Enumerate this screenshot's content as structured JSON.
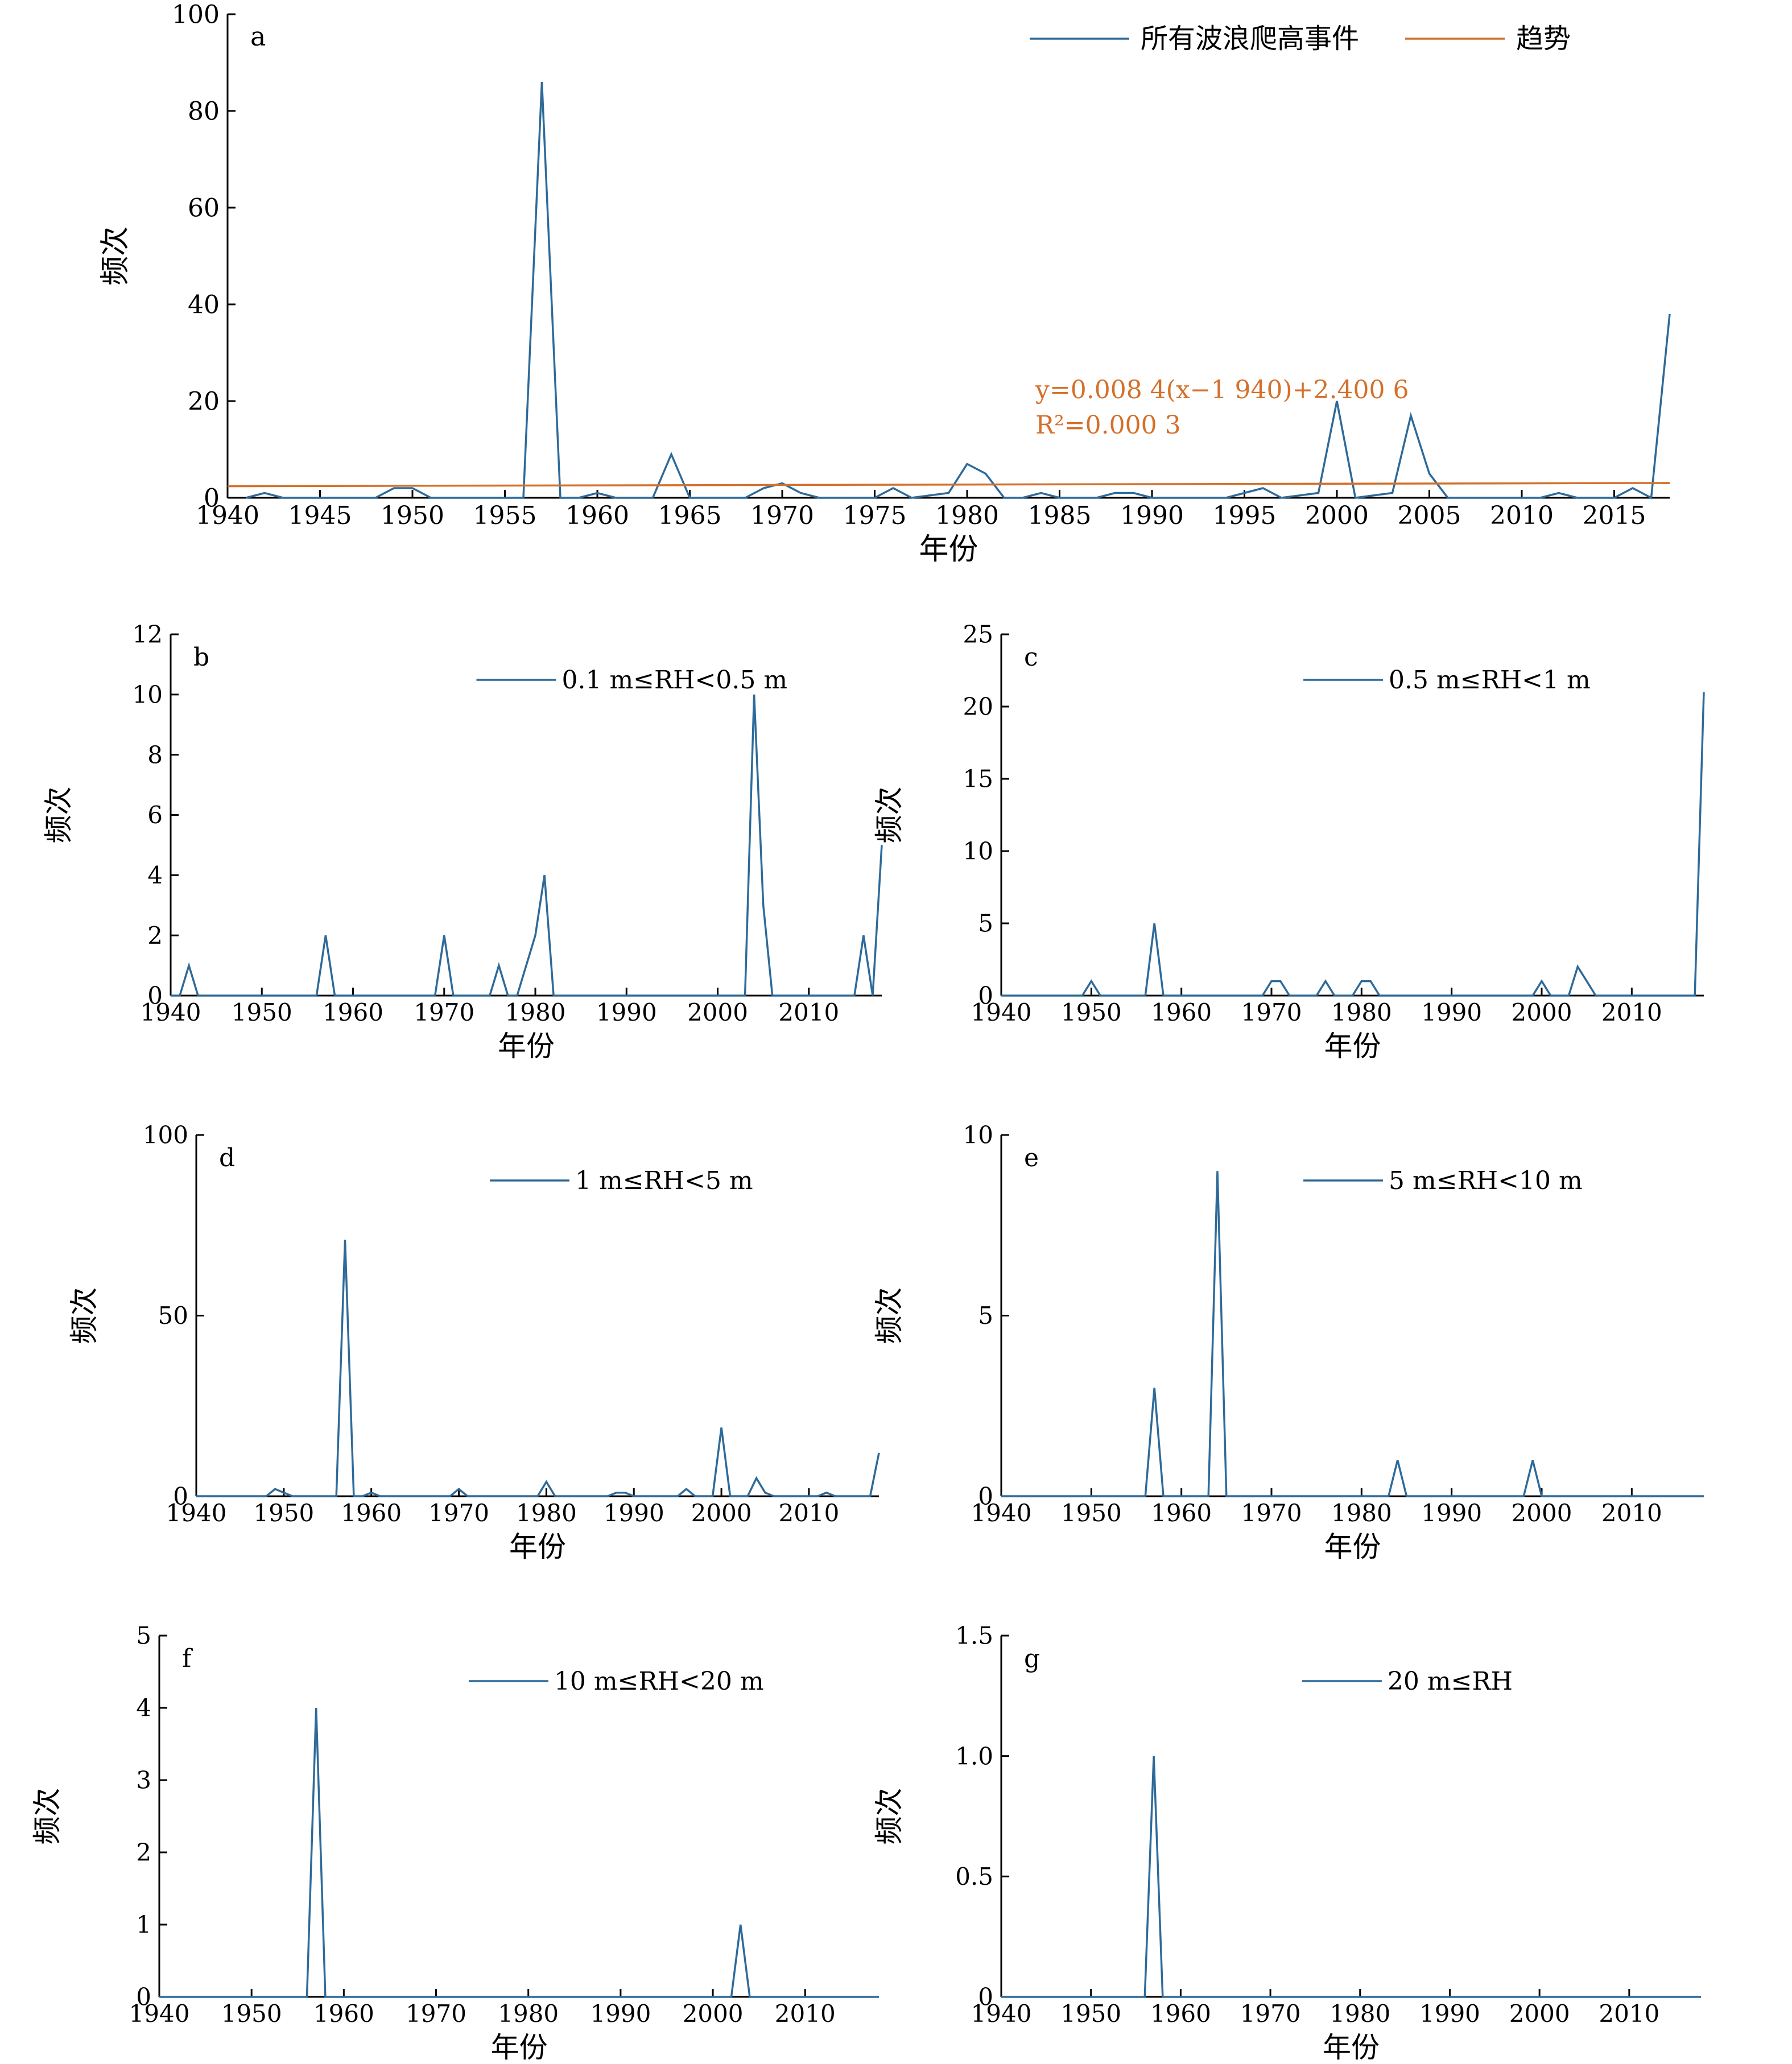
{
  "figure": {
    "xlabel": "年份",
    "ylabel": "频次",
    "line_color": "#2e6a99",
    "trend_color": "#d4702a",
    "text_color": "#000000"
  },
  "chart_data": [
    {
      "id": "a",
      "type": "line",
      "panel_label": "a",
      "xlabel": "年份",
      "ylabel": "频次",
      "xlim": [
        1940,
        2018
      ],
      "ylim": [
        0,
        100
      ],
      "xticks": [
        1940,
        1945,
        1950,
        1955,
        1960,
        1965,
        1970,
        1975,
        1980,
        1985,
        1990,
        1995,
        2000,
        2005,
        2010,
        2015
      ],
      "yticks": [
        0,
        20,
        40,
        60,
        80,
        100
      ],
      "legend": "top-right",
      "series": [
        {
          "name": "所有波浪爬高事件",
          "kind": "line",
          "color": "#2e6a99",
          "points": [
            [
              1941,
              0
            ],
            [
              1942,
              1
            ],
            [
              1943,
              0
            ],
            [
              1948,
              0
            ],
            [
              1949,
              2
            ],
            [
              1950,
              2
            ],
            [
              1951,
              0
            ],
            [
              1956,
              0
            ],
            [
              1957,
              86
            ],
            [
              1958,
              0
            ],
            [
              1959,
              0
            ],
            [
              1960,
              1
            ],
            [
              1961,
              0
            ],
            [
              1963,
              0
            ],
            [
              1964,
              9
            ],
            [
              1965,
              0
            ],
            [
              1968,
              0
            ],
            [
              1969,
              2
            ],
            [
              1970,
              3
            ],
            [
              1971,
              1
            ],
            [
              1972,
              0
            ],
            [
              1975,
              0
            ],
            [
              1976,
              2
            ],
            [
              1977,
              0
            ],
            [
              1979,
              1
            ],
            [
              1980,
              7
            ],
            [
              1981,
              5
            ],
            [
              1982,
              0
            ],
            [
              1983,
              0
            ],
            [
              1984,
              1
            ],
            [
              1985,
              0
            ],
            [
              1987,
              0
            ],
            [
              1988,
              1
            ],
            [
              1989,
              1
            ],
            [
              1990,
              0
            ],
            [
              1994,
              0
            ],
            [
              1995,
              1
            ],
            [
              1996,
              2
            ],
            [
              1997,
              0
            ],
            [
              1999,
              1
            ],
            [
              2000,
              20
            ],
            [
              2001,
              0
            ],
            [
              2003,
              1
            ],
            [
              2004,
              17
            ],
            [
              2005,
              5
            ],
            [
              2006,
              0
            ],
            [
              2011,
              0
            ],
            [
              2012,
              1
            ],
            [
              2013,
              0
            ],
            [
              2015,
              0
            ],
            [
              2016,
              2
            ],
            [
              2017,
              0
            ],
            [
              2018,
              38
            ]
          ]
        },
        {
          "name": "趋势",
          "kind": "trend",
          "color": "#d4702a",
          "points": [
            [
              1940,
              2.4006
            ],
            [
              2018,
              3.056
            ]
          ]
        }
      ],
      "annotation": {
        "equation_line1": "y=0.008 4(x−1 940)+2.400 6",
        "equation_line2": "R²=0.000 3",
        "color": "#d4702a"
      }
    },
    {
      "id": "b",
      "type": "line",
      "panel_label": "b",
      "xlabel": "年份",
      "ylabel": "频次",
      "xlim": [
        1940,
        2018
      ],
      "ylim": [
        0,
        12
      ],
      "xticks": [
        1940,
        1950,
        1960,
        1970,
        1980,
        1990,
        2000,
        2010
      ],
      "yticks": [
        0,
        2,
        4,
        6,
        8,
        10,
        12
      ],
      "legend": "top-right",
      "series": [
        {
          "name": "0.1 m≤RH<0.5 m",
          "kind": "line",
          "color": "#2e6a99",
          "points": [
            [
              1940,
              0
            ],
            [
              1941,
              0
            ],
            [
              1942,
              1
            ],
            [
              1943,
              0
            ],
            [
              1956,
              0
            ],
            [
              1957,
              2
            ],
            [
              1958,
              0
            ],
            [
              1969,
              0
            ],
            [
              1970,
              2
            ],
            [
              1971,
              0
            ],
            [
              1975,
              0
            ],
            [
              1976,
              1
            ],
            [
              1977,
              0
            ],
            [
              1978,
              0
            ],
            [
              1980,
              2
            ],
            [
              1981,
              4
            ],
            [
              1982,
              0
            ],
            [
              2003,
              0
            ],
            [
              2004,
              10
            ],
            [
              2005,
              3
            ],
            [
              2006,
              0
            ],
            [
              2015,
              0
            ],
            [
              2016,
              2
            ],
            [
              2017,
              0
            ],
            [
              2018,
              5
            ]
          ]
        }
      ]
    },
    {
      "id": "c",
      "type": "line",
      "panel_label": "c",
      "xlabel": "年份",
      "ylabel": "频次",
      "xlim": [
        1940,
        2018
      ],
      "ylim": [
        0,
        25
      ],
      "xticks": [
        1940,
        1950,
        1960,
        1970,
        1980,
        1990,
        2000,
        2010
      ],
      "yticks": [
        0,
        5,
        10,
        15,
        20,
        25
      ],
      "legend": "top-right",
      "series": [
        {
          "name": "0.5 m≤RH<1 m",
          "kind": "line",
          "color": "#2e6a99",
          "points": [
            [
              1940,
              0
            ],
            [
              1949,
              0
            ],
            [
              1950,
              1
            ],
            [
              1951,
              0
            ],
            [
              1956,
              0
            ],
            [
              1957,
              5
            ],
            [
              1958,
              0
            ],
            [
              1969,
              0
            ],
            [
              1970,
              1
            ],
            [
              1971,
              1
            ],
            [
              1972,
              0
            ],
            [
              1975,
              0
            ],
            [
              1976,
              1
            ],
            [
              1977,
              0
            ],
            [
              1979,
              0
            ],
            [
              1980,
              1
            ],
            [
              1981,
              1
            ],
            [
              1982,
              0
            ],
            [
              1999,
              0
            ],
            [
              2000,
              1
            ],
            [
              2001,
              0
            ],
            [
              2003,
              0
            ],
            [
              2004,
              2
            ],
            [
              2006,
              0
            ],
            [
              2017,
              0
            ],
            [
              2018,
              21
            ]
          ]
        }
      ]
    },
    {
      "id": "d",
      "type": "line",
      "panel_label": "d",
      "xlabel": "年份",
      "ylabel": "频次",
      "xlim": [
        1940,
        2018
      ],
      "ylim": [
        0,
        100
      ],
      "xticks": [
        1940,
        1950,
        1960,
        1970,
        1980,
        1990,
        2000,
        2010
      ],
      "yticks": [
        0,
        50,
        100
      ],
      "legend": "top-right",
      "series": [
        {
          "name": "1 m≤RH<5 m",
          "kind": "line",
          "color": "#2e6a99",
          "points": [
            [
              1940,
              0
            ],
            [
              1948,
              0
            ],
            [
              1949,
              2
            ],
            [
              1950,
              1
            ],
            [
              1951,
              0
            ],
            [
              1956,
              0
            ],
            [
              1957,
              71
            ],
            [
              1958,
              0
            ],
            [
              1959,
              0
            ],
            [
              1960,
              1
            ],
            [
              1961,
              0
            ],
            [
              1969,
              0
            ],
            [
              1970,
              2
            ],
            [
              1971,
              0
            ],
            [
              1979,
              0
            ],
            [
              1980,
              4
            ],
            [
              1981,
              0
            ],
            [
              1987,
              0
            ],
            [
              1988,
              1
            ],
            [
              1989,
              1
            ],
            [
              1990,
              0
            ],
            [
              1995,
              0
            ],
            [
              1996,
              2
            ],
            [
              1997,
              0
            ],
            [
              1999,
              0
            ],
            [
              2000,
              19
            ],
            [
              2001,
              0
            ],
            [
              2003,
              0
            ],
            [
              2004,
              5
            ],
            [
              2005,
              1
            ],
            [
              2006,
              0
            ],
            [
              2011,
              0
            ],
            [
              2012,
              1
            ],
            [
              2013,
              0
            ],
            [
              2017,
              0
            ],
            [
              2018,
              12
            ]
          ]
        }
      ]
    },
    {
      "id": "e",
      "type": "line",
      "panel_label": "e",
      "xlabel": "年份",
      "ylabel": "频次",
      "xlim": [
        1940,
        2018
      ],
      "ylim": [
        0,
        10
      ],
      "xticks": [
        1940,
        1950,
        1960,
        1970,
        1980,
        1990,
        2000,
        2010
      ],
      "yticks": [
        0,
        5,
        10
      ],
      "legend": "top-right",
      "series": [
        {
          "name": "5 m≤RH<10 m",
          "kind": "line",
          "color": "#2e6a99",
          "points": [
            [
              1940,
              0
            ],
            [
              1956,
              0
            ],
            [
              1957,
              3
            ],
            [
              1958,
              0
            ],
            [
              1963,
              0
            ],
            [
              1964,
              9
            ],
            [
              1965,
              0
            ],
            [
              1983,
              0
            ],
            [
              1984,
              1
            ],
            [
              1985,
              0
            ],
            [
              1998,
              0
            ],
            [
              1999,
              1
            ],
            [
              2000,
              0
            ],
            [
              2018,
              0
            ]
          ]
        }
      ]
    },
    {
      "id": "f",
      "type": "line",
      "panel_label": "f",
      "xlabel": "年份",
      "ylabel": "频次",
      "xlim": [
        1940,
        2018
      ],
      "ylim": [
        0,
        5
      ],
      "xticks": [
        1940,
        1950,
        1960,
        1970,
        1980,
        1990,
        2000,
        2010
      ],
      "yticks": [
        0,
        1,
        2,
        3,
        4,
        5
      ],
      "legend": "top-right",
      "series": [
        {
          "name": "10 m≤RH<20 m",
          "kind": "line",
          "color": "#2e6a99",
          "points": [
            [
              1940,
              0
            ],
            [
              1956,
              0
            ],
            [
              1957,
              4
            ],
            [
              1958,
              0
            ],
            [
              2002,
              0
            ],
            [
              2003,
              1
            ],
            [
              2004,
              0
            ],
            [
              2018,
              0
            ]
          ]
        }
      ]
    },
    {
      "id": "g",
      "type": "line",
      "panel_label": "g",
      "xlabel": "年份",
      "ylabel": "频次",
      "xlim": [
        1940,
        2018
      ],
      "ylim": [
        0,
        1.5
      ],
      "xticks": [
        1940,
        1950,
        1960,
        1970,
        1980,
        1990,
        2000,
        2010
      ],
      "yticks": [
        0,
        0.5,
        1.0,
        1.5
      ],
      "ytick_labels": [
        "0",
        "0.5",
        "1.0",
        "1.5"
      ],
      "legend": "top-right",
      "series": [
        {
          "name": "20 m≤RH",
          "kind": "line",
          "color": "#2e6a99",
          "points": [
            [
              1940,
              0
            ],
            [
              1956,
              0
            ],
            [
              1957,
              1
            ],
            [
              1958,
              0
            ],
            [
              2018,
              0
            ]
          ]
        }
      ]
    }
  ]
}
